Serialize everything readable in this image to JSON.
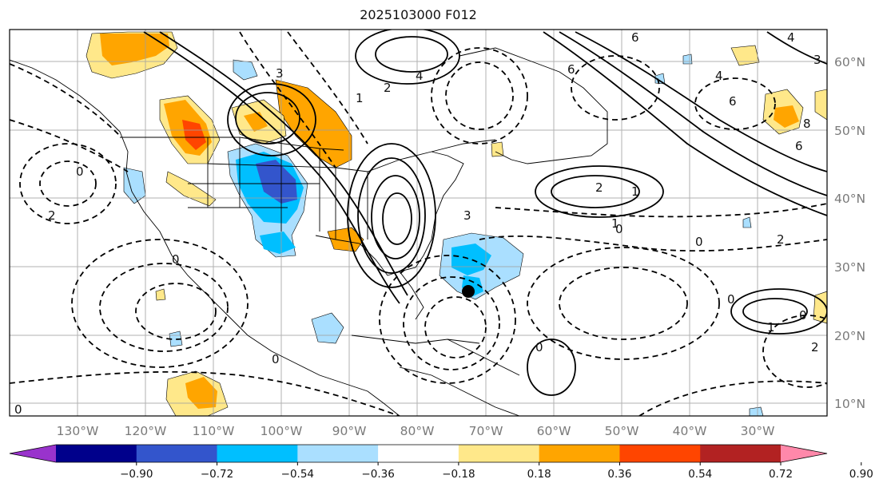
{
  "title": "2025103000 F012",
  "lat_labels": [
    "60°N",
    "50°N",
    "40°N",
    "30°N",
    "20°N",
    "10°N"
  ],
  "lon_labels": [
    "130°W",
    "120°W",
    "110°W",
    "100°W",
    "90°W",
    "80°W",
    "70°W",
    "60°W",
    "50°W",
    "40°W",
    "30°W"
  ],
  "colorbar": {
    "colors": [
      "#9933cc",
      "#00008b",
      "#3355cc",
      "#00bfff",
      "#aadfff",
      "#ffffff",
      "#ffe88a",
      "#ffa500",
      "#ff4500",
      "#b22222",
      "#ff88aa"
    ],
    "tick_labels": [
      "−0.90",
      "−0.72",
      "−0.54",
      "−0.36",
      "−0.18",
      "0.18",
      "0.36",
      "0.54",
      "0.72",
      "0.90"
    ]
  },
  "contour_labels": [
    {
      "text": "4"
    },
    {
      "text": "3"
    },
    {
      "text": "2"
    },
    {
      "text": "1"
    },
    {
      "text": "0"
    },
    {
      "text": "6"
    },
    {
      "text": "6"
    },
    {
      "text": "4"
    },
    {
      "text": "6"
    },
    {
      "text": "8"
    },
    {
      "text": "2"
    },
    {
      "text": "1"
    },
    {
      "text": "0"
    },
    {
      "text": "2"
    },
    {
      "text": "0"
    },
    {
      "text": "0"
    },
    {
      "text": "1"
    },
    {
      "text": "0"
    },
    {
      "text": "3"
    },
    {
      "text": "2"
    },
    {
      "text": "0"
    },
    {
      "text": "0"
    },
    {
      "text": "1"
    },
    {
      "text": "0"
    },
    {
      "text": "4"
    },
    {
      "text": "6"
    },
    {
      "text": "2"
    },
    {
      "text": "0"
    },
    {
      "text": "3"
    }
  ],
  "marker": {
    "type": "point",
    "color": "#000000",
    "lon": -70.5,
    "lat": 26.5
  }
}
